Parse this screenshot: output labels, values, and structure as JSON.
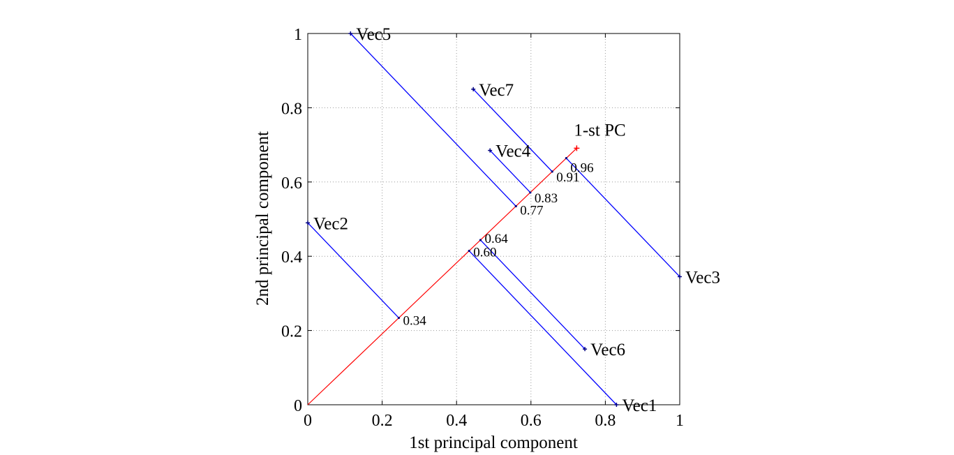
{
  "chart_data": {
    "type": "scatter",
    "xlabel": "1st principal component",
    "ylabel": "2nd principal component",
    "xlim": [
      0,
      1
    ],
    "ylim": [
      0,
      1
    ],
    "xticks": [
      "0",
      "0.2",
      "0.4",
      "0.6",
      "0.8",
      "1"
    ],
    "yticks": [
      "0",
      "0.2",
      "0.4",
      "0.6",
      "0.8",
      "1"
    ],
    "grid": true,
    "principal_axis": {
      "label": "1-st PC",
      "from": [
        0,
        0
      ],
      "to": [
        0.723,
        0.691
      ],
      "color": "#ff0000"
    },
    "points": [
      {
        "label": "Vec1",
        "x": 0.83,
        "y": 0.0,
        "projection": "0.60"
      },
      {
        "label": "Vec2",
        "x": 0.0,
        "y": 0.49,
        "projection": "0.34"
      },
      {
        "label": "Vec3",
        "x": 1.0,
        "y": 0.345,
        "projection": "0.96"
      },
      {
        "label": "Vec4",
        "x": 0.49,
        "y": 0.685,
        "projection": "0.83"
      },
      {
        "label": "Vec5",
        "x": 0.115,
        "y": 1.0,
        "projection": "0.77"
      },
      {
        "label": "Vec6",
        "x": 0.745,
        "y": 0.15,
        "projection": "0.64"
      },
      {
        "label": "Vec7",
        "x": 0.445,
        "y": 0.85,
        "projection": "0.91"
      }
    ],
    "colors": {
      "projection_line": "#0000ff",
      "pc_line": "#ff0000",
      "marker": "#000080",
      "grid": "#999999"
    }
  }
}
